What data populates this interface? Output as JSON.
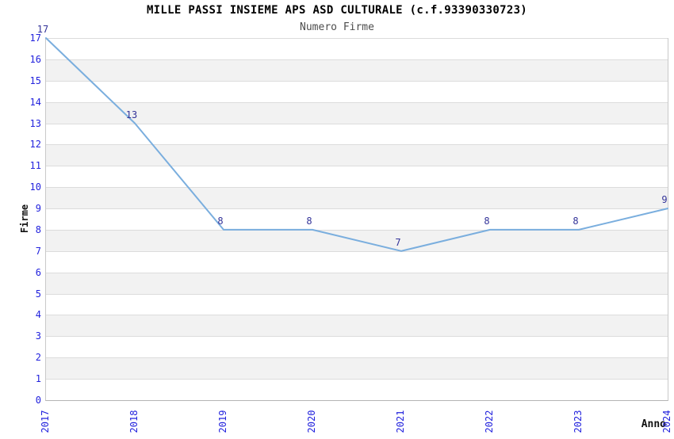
{
  "chart_data": {
    "type": "line",
    "title": "MILLE PASSI INSIEME APS ASD CULTURALE (c.f.93390330723)",
    "subtitle": "Numero Firme",
    "xlabel": "Anno",
    "ylabel": "Firme",
    "categories": [
      "2017",
      "2018",
      "2019",
      "2020",
      "2021",
      "2022",
      "2023",
      "2024"
    ],
    "series": [
      {
        "name": "Numero Firme",
        "values": [
          17,
          13,
          8,
          8,
          7,
          8,
          8,
          9
        ]
      }
    ],
    "data_labels": [
      "17",
      "13",
      "8",
      "8",
      "7",
      "8",
      "8",
      "9"
    ],
    "ylim": [
      0,
      17
    ],
    "ytick_step": 1,
    "yticks": [
      "0",
      "1",
      "2",
      "3",
      "4",
      "5",
      "6",
      "7",
      "8",
      "9",
      "10",
      "11",
      "12",
      "13",
      "14",
      "15",
      "16",
      "17"
    ],
    "grid": true,
    "legend": false,
    "band_pattern": "alternating horizontal stripes between odd and even gridlines",
    "colors": {
      "line": "#7aaede",
      "tick_label": "#2222dd",
      "data_label": "#333399",
      "band": "#f2f2f2",
      "gridline": "#dcdcdc",
      "title": "#000000",
      "subtitle": "#4d4d4d",
      "background": "#ffffff"
    }
  }
}
